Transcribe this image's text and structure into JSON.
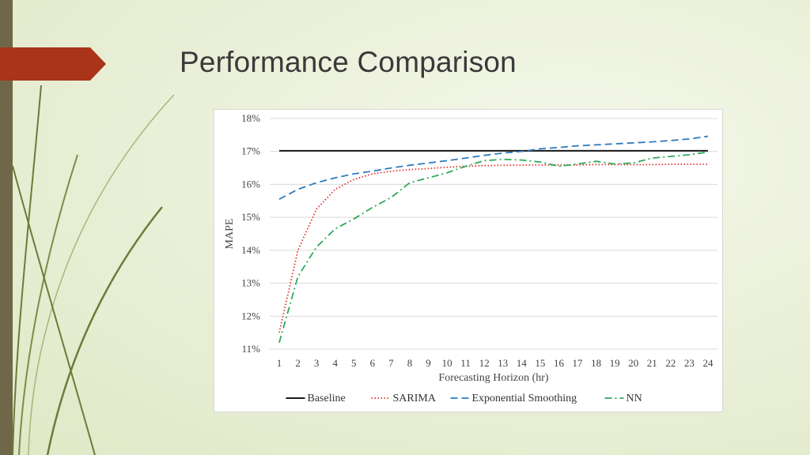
{
  "slide": {
    "title": "Performance Comparison"
  },
  "chart_data": {
    "type": "line",
    "title": "",
    "xlabel": "Forecasting Horizon (hr)",
    "ylabel": "MAPE",
    "x": [
      1,
      2,
      3,
      4,
      5,
      6,
      7,
      8,
      9,
      10,
      11,
      12,
      13,
      14,
      15,
      16,
      17,
      18,
      19,
      20,
      21,
      22,
      23,
      24
    ],
    "ylim": [
      0.11,
      0.18
    ],
    "yticks": [
      "11%",
      "12%",
      "13%",
      "14%",
      "15%",
      "16%",
      "17%",
      "18%"
    ],
    "grid": true,
    "legend_position": "bottom",
    "series": [
      {
        "name": "Baseline",
        "color": "#1a1a1a",
        "dash": "solid",
        "values": [
          17.02,
          17.02,
          17.02,
          17.02,
          17.02,
          17.02,
          17.02,
          17.02,
          17.02,
          17.02,
          17.02,
          17.02,
          17.02,
          17.02,
          17.02,
          17.02,
          17.02,
          17.02,
          17.02,
          17.02,
          17.02,
          17.02,
          17.02,
          17.02
        ]
      },
      {
        "name": "SARIMA",
        "color": "#e0302a",
        "dash": "dotted",
        "values": [
          11.5,
          14.0,
          15.25,
          15.85,
          16.15,
          16.32,
          16.4,
          16.45,
          16.48,
          16.52,
          16.55,
          16.57,
          16.58,
          16.58,
          16.59,
          16.59,
          16.59,
          16.6,
          16.6,
          16.6,
          16.6,
          16.61,
          16.61,
          16.61
        ]
      },
      {
        "name": "Exponential Smoothing",
        "color": "#2f7bbd",
        "dash": "dashed",
        "values": [
          15.55,
          15.85,
          16.05,
          16.2,
          16.32,
          16.4,
          16.5,
          16.58,
          16.65,
          16.72,
          16.8,
          16.88,
          16.95,
          17.0,
          17.08,
          17.12,
          17.17,
          17.2,
          17.23,
          17.26,
          17.29,
          17.33,
          17.38,
          17.46
        ]
      },
      {
        "name": "NN",
        "color": "#2eaa5a",
        "dash": "dashdot",
        "values": [
          11.2,
          13.2,
          14.1,
          14.65,
          14.95,
          15.3,
          15.6,
          16.05,
          16.2,
          16.35,
          16.55,
          16.72,
          16.76,
          16.74,
          16.68,
          16.55,
          16.62,
          16.7,
          16.62,
          16.65,
          16.8,
          16.85,
          16.9,
          16.98
        ]
      }
    ]
  }
}
